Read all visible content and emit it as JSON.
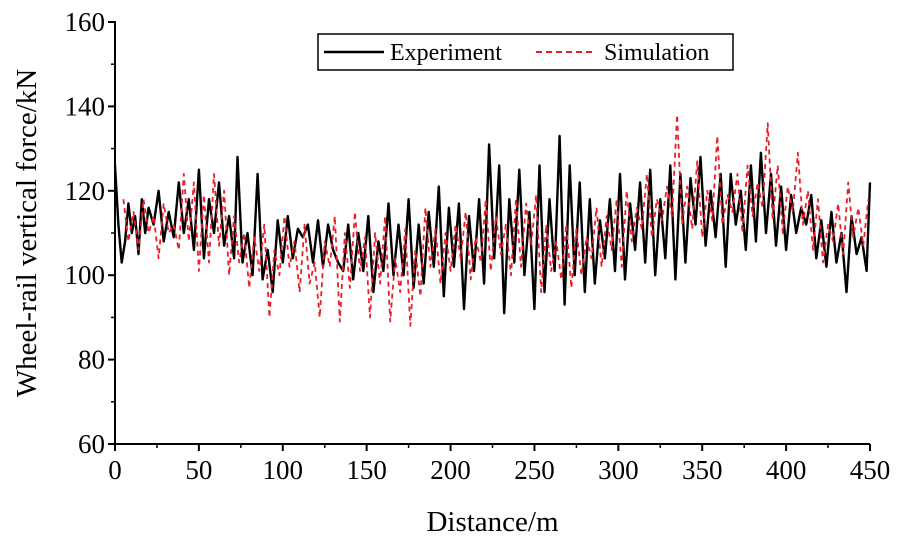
{
  "chart_data": {
    "type": "line",
    "xlabel": "Distance/m",
    "ylabel": "Wheel-rail vertical force/kN",
    "xlim": [
      0,
      450
    ],
    "ylim": [
      60,
      160
    ],
    "xticks": [
      0,
      50,
      100,
      150,
      200,
      250,
      300,
      350,
      400,
      450
    ],
    "yticks": [
      60,
      80,
      100,
      120,
      140,
      160
    ],
    "legend": {
      "position": "top-right"
    },
    "series": [
      {
        "name": "Experiment",
        "color": "#000000",
        "style": "solid",
        "x": [
          0,
          2,
          4,
          6,
          8,
          10,
          12,
          14,
          16,
          18,
          20,
          23,
          26,
          29,
          32,
          35,
          38,
          41,
          44,
          47,
          50,
          53,
          56,
          59,
          62,
          65,
          68,
          71,
          73,
          76,
          79,
          82,
          85,
          88,
          91,
          94,
          97,
          100,
          103,
          106,
          109,
          112,
          115,
          118,
          121,
          124,
          127,
          130,
          133,
          136,
          139,
          142,
          145,
          148,
          151,
          154,
          157,
          160,
          163,
          166,
          169,
          172,
          175,
          178,
          181,
          184,
          187,
          190,
          193,
          196,
          199,
          202,
          205,
          208,
          211,
          214,
          217,
          220,
          223,
          226,
          229,
          232,
          235,
          238,
          241,
          244,
          247,
          250,
          253,
          256,
          259,
          262,
          265,
          268,
          271,
          274,
          277,
          280,
          283,
          286,
          289,
          292,
          295,
          298,
          301,
          304,
          307,
          310,
          313,
          316,
          319,
          322,
          325,
          328,
          331,
          334,
          337,
          340,
          343,
          346,
          349,
          352,
          355,
          358,
          361,
          364,
          367,
          370,
          373,
          376,
          379,
          382,
          385,
          388,
          391,
          394,
          397,
          400,
          403,
          406,
          409,
          412,
          415,
          418,
          421,
          424,
          427,
          430,
          433,
          436,
          439,
          442,
          445,
          448,
          450
        ],
        "values": [
          126,
          112,
          103,
          108,
          117,
          110,
          114,
          105,
          118,
          110,
          116,
          112,
          120,
          108,
          115,
          109,
          122,
          110,
          118,
          106,
          125,
          104,
          118,
          110,
          122,
          107,
          114,
          104,
          128,
          103,
          110,
          100,
          124,
          99,
          106,
          96,
          113,
          103,
          114,
          104,
          111,
          109,
          112,
          103,
          113,
          102,
          112,
          106,
          103,
          101,
          112,
          99,
          110,
          101,
          114,
          96,
          108,
          101,
          117,
          100,
          112,
          100,
          118,
          97,
          112,
          98,
          115,
          102,
          121,
          95,
          116,
          102,
          117,
          92,
          114,
          101,
          118,
          98,
          131,
          104,
          126,
          91,
          118,
          103,
          125,
          100,
          115,
          92,
          126,
          96,
          118,
          101,
          133,
          93,
          126,
          100,
          122,
          96,
          118,
          98,
          113,
          104,
          118,
          101,
          124,
          99,
          117,
          106,
          122,
          103,
          125,
          100,
          118,
          104,
          126,
          99,
          124,
          103,
          123,
          112,
          128,
          107,
          120,
          109,
          124,
          102,
          124,
          112,
          120,
          106,
          126,
          108,
          129,
          110,
          124,
          107,
          121,
          106,
          119,
          110,
          116,
          112,
          119,
          104,
          113,
          102,
          115,
          103,
          110,
          96,
          114,
          105,
          109,
          101,
          122
        ]
      },
      {
        "name": "Simulation",
        "color": "#e8202a",
        "style": "dashed",
        "x": [
          5,
          8,
          11,
          14,
          17,
          20,
          23,
          26,
          29,
          32,
          35,
          38,
          41,
          44,
          47,
          50,
          53,
          56,
          59,
          62,
          65,
          68,
          71,
          74,
          77,
          80,
          83,
          86,
          89,
          92,
          95,
          98,
          101,
          104,
          107,
          110,
          113,
          116,
          119,
          122,
          125,
          128,
          131,
          134,
          137,
          140,
          143,
          146,
          149,
          152,
          155,
          158,
          161,
          164,
          167,
          170,
          173,
          176,
          179,
          182,
          185,
          188,
          191,
          194,
          197,
          200,
          203,
          206,
          209,
          212,
          215,
          218,
          221,
          224,
          227,
          230,
          233,
          236,
          239,
          242,
          245,
          248,
          251,
          254,
          257,
          260,
          263,
          266,
          269,
          272,
          275,
          278,
          281,
          284,
          287,
          290,
          293,
          296,
          299,
          302,
          305,
          308,
          311,
          314,
          317,
          320,
          323,
          326,
          329,
          332,
          335,
          338,
          341,
          344,
          347,
          350,
          353,
          356,
          359,
          362,
          365,
          368,
          371,
          374,
          377,
          380,
          383,
          386,
          389,
          392,
          395,
          398,
          401,
          404,
          407,
          410,
          413,
          416,
          419,
          422,
          425,
          428,
          431,
          434,
          437,
          440,
          443,
          446,
          449
        ],
        "values": [
          118,
          108,
          115,
          106,
          118,
          110,
          114,
          104,
          117,
          110,
          112,
          106,
          124,
          108,
          122,
          101,
          119,
          103,
          124,
          107,
          120,
          100,
          114,
          103,
          110,
          97,
          109,
          101,
          112,
          90,
          106,
          100,
          114,
          102,
          108,
          96,
          112,
          98,
          103,
          90,
          108,
          102,
          114,
          89,
          110,
          97,
          115,
          101,
          109,
          90,
          110,
          98,
          114,
          89,
          104,
          96,
          111,
          88,
          106,
          95,
          116,
          102,
          111,
          98,
          110,
          101,
          112,
          104,
          115,
          99,
          109,
          103,
          118,
          101,
          114,
          105,
          112,
          100,
          118,
          102,
          117,
          107,
          119,
          96,
          112,
          101,
          108,
          99,
          112,
          97,
          111,
          100,
          109,
          104,
          116,
          102,
          114,
          106,
          118,
          102,
          120,
          108,
          116,
          111,
          124,
          109,
          118,
          113,
          121,
          114,
          138,
          112,
          121,
          111,
          127,
          109,
          120,
          113,
          133,
          112,
          119,
          115,
          124,
          110,
          126,
          114,
          122,
          116,
          136,
          113,
          126,
          110,
          121,
          115,
          129,
          112,
          120,
          106,
          118,
          103,
          112,
          108,
          117,
          105,
          122,
          109,
          116,
          107,
          118
        ]
      }
    ]
  }
}
